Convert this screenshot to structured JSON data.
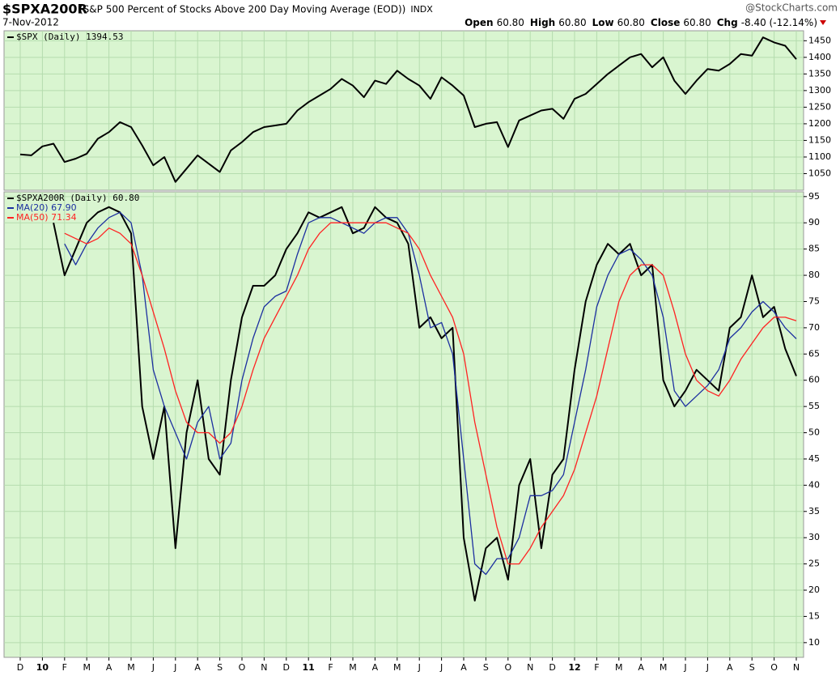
{
  "header": {
    "symbol": "$SPXA200R",
    "description": "(S&P 500 Percent of Stocks Above 200 Day Moving Average (EOD))",
    "exchange": "INDX",
    "date": "7-Nov-2012",
    "source": "@StockCharts.com",
    "quote": [
      {
        "label": "Open",
        "value": "60.80"
      },
      {
        "label": "High",
        "value": "60.80"
      },
      {
        "label": "Low",
        "value": "60.80"
      },
      {
        "label": "Close",
        "value": "60.80"
      },
      {
        "label": "Chg",
        "value": "-8.40 (-12.14%)"
      }
    ]
  },
  "chart_data": [
    {
      "type": "line",
      "background": "#d9f5d0",
      "grid": true,
      "ylim": [
        1000,
        1480
      ],
      "yticks": [
        1050,
        1100,
        1150,
        1200,
        1250,
        1300,
        1350,
        1400,
        1450
      ],
      "series": [
        {
          "name": "$SPX (Daily) 1394.53",
          "color": "#000000",
          "values": [
            1108,
            1105,
            1132,
            1140,
            1085,
            1095,
            1110,
            1155,
            1175,
            1205,
            1190,
            1135,
            1075,
            1100,
            1025,
            1065,
            1105,
            1080,
            1055,
            1120,
            1145,
            1175,
            1190,
            1195,
            1200,
            1240,
            1265,
            1285,
            1305,
            1335,
            1315,
            1280,
            1330,
            1320,
            1360,
            1335,
            1315,
            1275,
            1340,
            1315,
            1285,
            1190,
            1200,
            1205,
            1130,
            1210,
            1225,
            1240,
            1245,
            1215,
            1275,
            1290,
            1320,
            1350,
            1375,
            1400,
            1410,
            1370,
            1400,
            1330,
            1290,
            1330,
            1365,
            1360,
            1380,
            1410,
            1405,
            1460,
            1445,
            1435,
            1394.53
          ]
        }
      ]
    },
    {
      "type": "line",
      "background": "#d9f5d0",
      "grid": true,
      "ylim": [
        7.2,
        95.9
      ],
      "yticks": [
        10,
        15,
        20,
        25,
        30,
        35,
        40,
        45,
        50,
        55,
        60,
        65,
        70,
        75,
        80,
        85,
        90,
        95
      ],
      "categories": [
        "D",
        null,
        "10",
        null,
        "F",
        null,
        "M",
        null,
        "A",
        null,
        "M",
        null,
        "J",
        null,
        "J",
        null,
        "A",
        null,
        "S",
        null,
        "O",
        null,
        "N",
        null,
        "D",
        null,
        "11",
        null,
        "F",
        null,
        "M",
        null,
        "A",
        null,
        "M",
        null,
        "J",
        null,
        "J",
        null,
        "A",
        null,
        "S",
        null,
        "O",
        null,
        "N",
        null,
        "D",
        null,
        "12",
        null,
        "F",
        null,
        "M",
        null,
        "A",
        null,
        "M",
        null,
        "J",
        null,
        "J",
        null,
        "A",
        null,
        "S",
        null,
        "O",
        null,
        "N"
      ],
      "series": [
        {
          "name": "$SPXA200R (Daily) 60.80",
          "color": "#000000",
          "values": [
            null,
            null,
            null,
            90,
            80,
            85,
            90,
            92,
            93,
            92,
            88,
            55,
            45,
            55,
            28,
            50,
            60,
            45,
            42,
            60,
            72,
            78,
            78,
            80,
            85,
            88,
            92,
            91,
            92,
            93,
            88,
            89,
            93,
            91,
            90,
            86,
            70,
            72,
            68,
            70,
            30,
            18,
            28,
            30,
            22,
            40,
            45,
            28,
            42,
            45,
            62,
            75,
            82,
            86,
            84,
            86,
            80,
            82,
            60,
            55,
            58,
            62,
            60,
            58,
            70,
            72,
            80,
            72,
            74,
            66,
            60.8
          ]
        },
        {
          "name": "MA(20) 67.90",
          "color": "#1c2fa0",
          "values": [
            null,
            null,
            null,
            null,
            86,
            82,
            86,
            89,
            91,
            92,
            90,
            80,
            62,
            55,
            50,
            45,
            52,
            55,
            45,
            48,
            60,
            68,
            74,
            76,
            77,
            84,
            90,
            91,
            91,
            90,
            89,
            88,
            90,
            91,
            91,
            88,
            80,
            70,
            71,
            65,
            45,
            25,
            23,
            26,
            26,
            30,
            38,
            38,
            39,
            42,
            52,
            62,
            74,
            80,
            84,
            85,
            83,
            80,
            72,
            58,
            55,
            57,
            59,
            62,
            68,
            70,
            73,
            75,
            73,
            70,
            67.9
          ]
        },
        {
          "name": "MA(50) 71.34",
          "color": "#ff2222",
          "values": [
            null,
            null,
            null,
            null,
            88,
            87,
            86,
            87,
            89,
            88,
            86,
            80,
            73,
            66,
            58,
            52,
            50,
            50,
            48,
            50,
            55,
            62,
            68,
            72,
            76,
            80,
            85,
            88,
            90,
            90,
            90,
            90,
            90,
            90,
            89,
            88,
            85,
            80,
            76,
            72,
            65,
            52,
            42,
            32,
            25,
            25,
            28,
            32,
            35,
            38,
            43,
            50,
            57,
            66,
            75,
            80,
            82,
            82,
            80,
            73,
            65,
            60,
            58,
            57,
            60,
            64,
            67,
            70,
            72,
            72,
            71.34
          ]
        }
      ]
    }
  ]
}
